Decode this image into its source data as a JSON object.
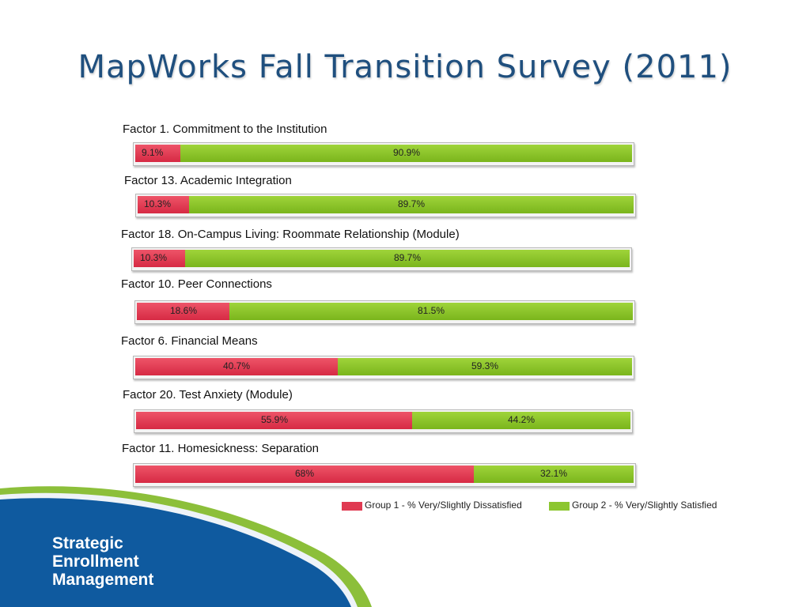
{
  "slide": {
    "title": "MapWorks Fall Transition Survey (2011)",
    "brand_lines": [
      "Strategic",
      "Enrollment",
      "Management"
    ]
  },
  "colors": {
    "title": "#1f4f7e",
    "dissatisfied": "#e03a52",
    "satisfied": "#8cc630",
    "wave_dark": "#0f5a9f",
    "wave_light": "#8cbf3a"
  },
  "chart_data": {
    "type": "bar",
    "stacked": true,
    "orientation": "horizontal",
    "categories": [
      "Factor 1. Commitment to the Institution",
      "Factor 13. Academic Integration",
      "Factor 18. On-Campus Living: Roommate Relationship (Module)",
      "Factor 10. Peer Connections",
      "Factor 6. Financial Means",
      "Factor 20. Test Anxiety (Module)",
      "Factor 11. Homesickness: Separation"
    ],
    "series": [
      {
        "name": "Group 1 - % Very/Slightly Dissatisfied",
        "values": [
          9.1,
          10.3,
          10.3,
          18.6,
          40.7,
          55.9,
          68
        ],
        "labels": [
          "9.1%",
          "10.3%",
          "10.3%",
          "18.6%",
          "40.7%",
          "55.9%",
          "68%"
        ]
      },
      {
        "name": "Group 2 - % Very/Slightly Satisfied",
        "values": [
          90.9,
          89.7,
          89.7,
          81.5,
          59.3,
          44.2,
          32.1
        ],
        "labels": [
          "90.9%",
          "89.7%",
          "89.7%",
          "81.5%",
          "59.3%",
          "44.2%",
          "32.1%"
        ]
      }
    ],
    "xlim": [
      0,
      100
    ],
    "legend": "bottom-right"
  }
}
